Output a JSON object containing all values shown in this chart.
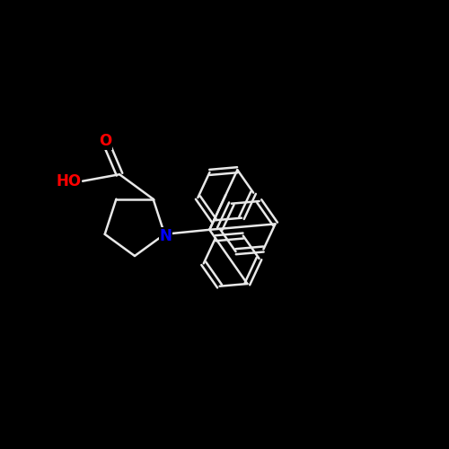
{
  "background_color": "#000000",
  "bond_width": 1.8,
  "bond_color": "#e8e8e8",
  "O_color": "#ff0000",
  "N_color": "#0000ff",
  "fig_size": [
    5.0,
    5.0
  ],
  "dpi": 100,
  "xlim": [
    0,
    10
  ],
  "ylim": [
    0,
    10
  ]
}
